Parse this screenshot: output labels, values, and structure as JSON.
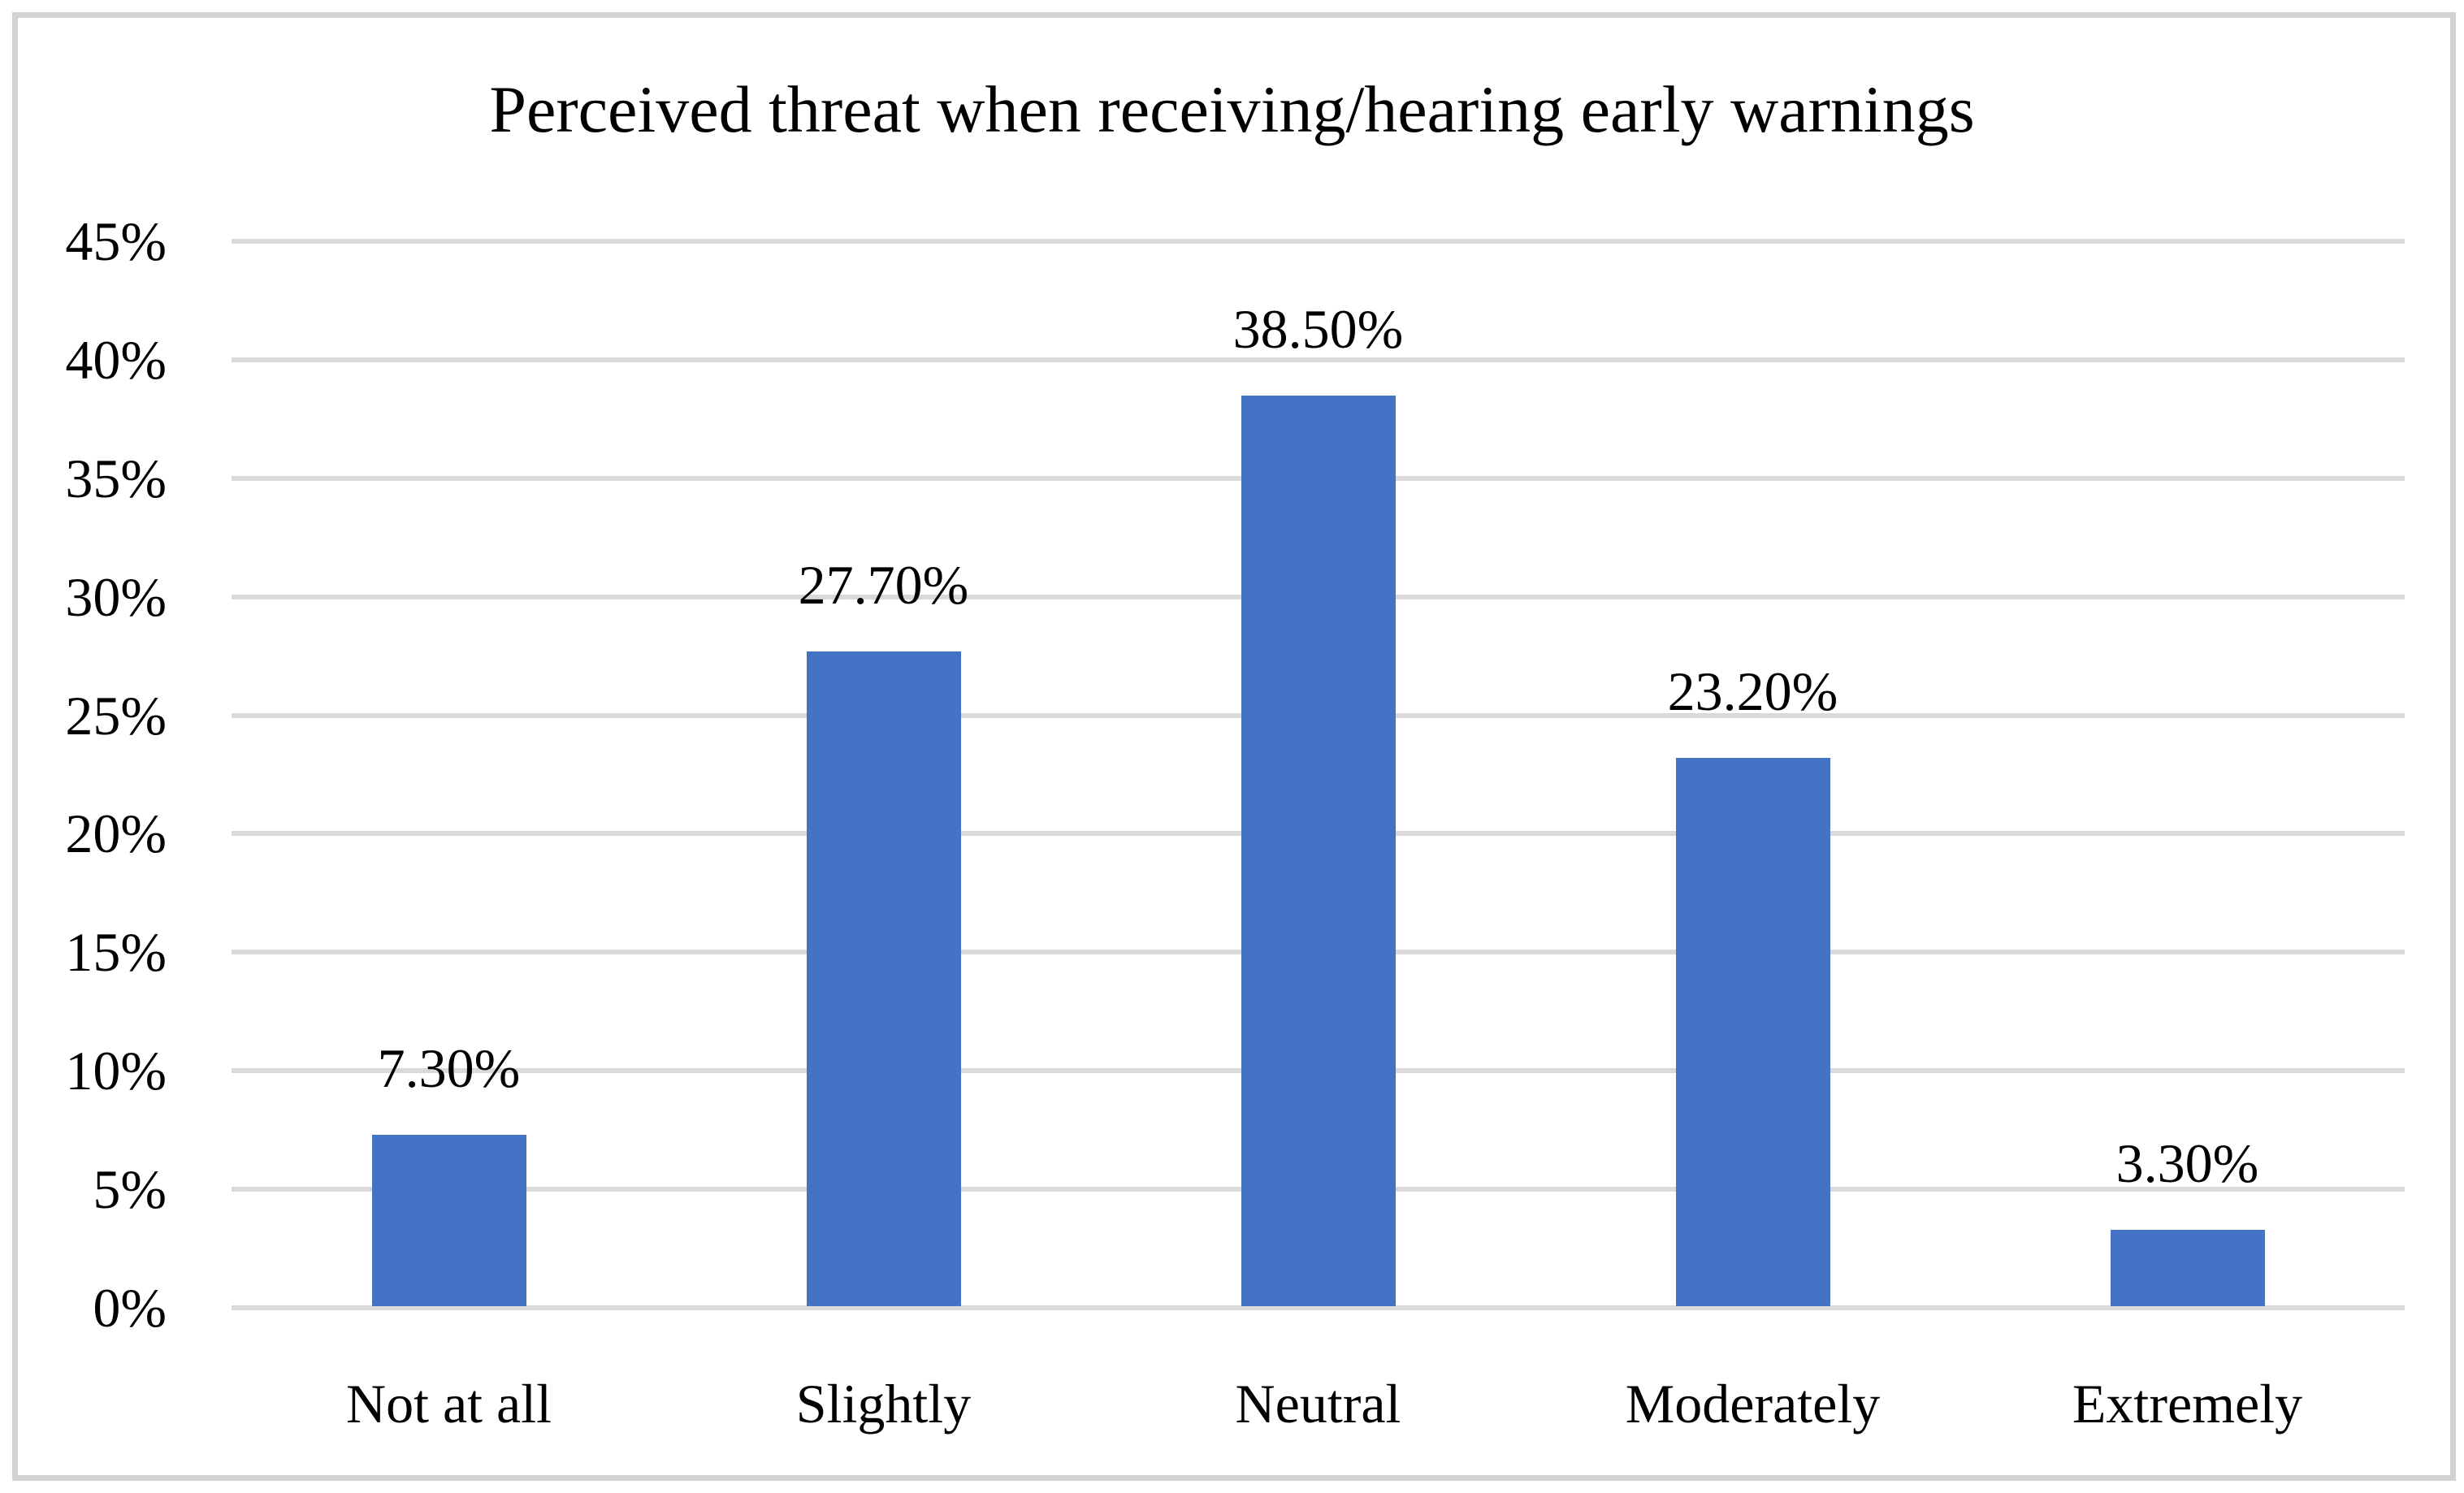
{
  "chart_data": {
    "type": "bar",
    "title": "Perceived threat when receiving/hearing early warnings",
    "categories": [
      "Not at all",
      "Slightly",
      "Neutral",
      "Moderately",
      "Extremely"
    ],
    "values": [
      7.3,
      27.7,
      38.5,
      23.2,
      3.3
    ],
    "data_labels": [
      "7.30%",
      "27.70%",
      "38.50%",
      "23.20%",
      "3.30%"
    ],
    "y_ticks": [
      {
        "label": "0%",
        "value": 0
      },
      {
        "label": "5%",
        "value": 5
      },
      {
        "label": "10%",
        "value": 10
      },
      {
        "label": "15%",
        "value": 15
      },
      {
        "label": "20%",
        "value": 20
      },
      {
        "label": "25%",
        "value": 25
      },
      {
        "label": "30%",
        "value": 30
      },
      {
        "label": "35%",
        "value": 35
      },
      {
        "label": "40%",
        "value": 40
      },
      {
        "label": "45%",
        "value": 45
      }
    ],
    "ylim": [
      0,
      45
    ],
    "xlabel": "",
    "ylabel": "",
    "grid": true,
    "legend": false,
    "colors": {
      "bar": "#4472C4",
      "gridline": "#D9D9D9",
      "frame_border": "#D3D3D3",
      "text": "#000000",
      "background": "#FFFFFF"
    }
  }
}
